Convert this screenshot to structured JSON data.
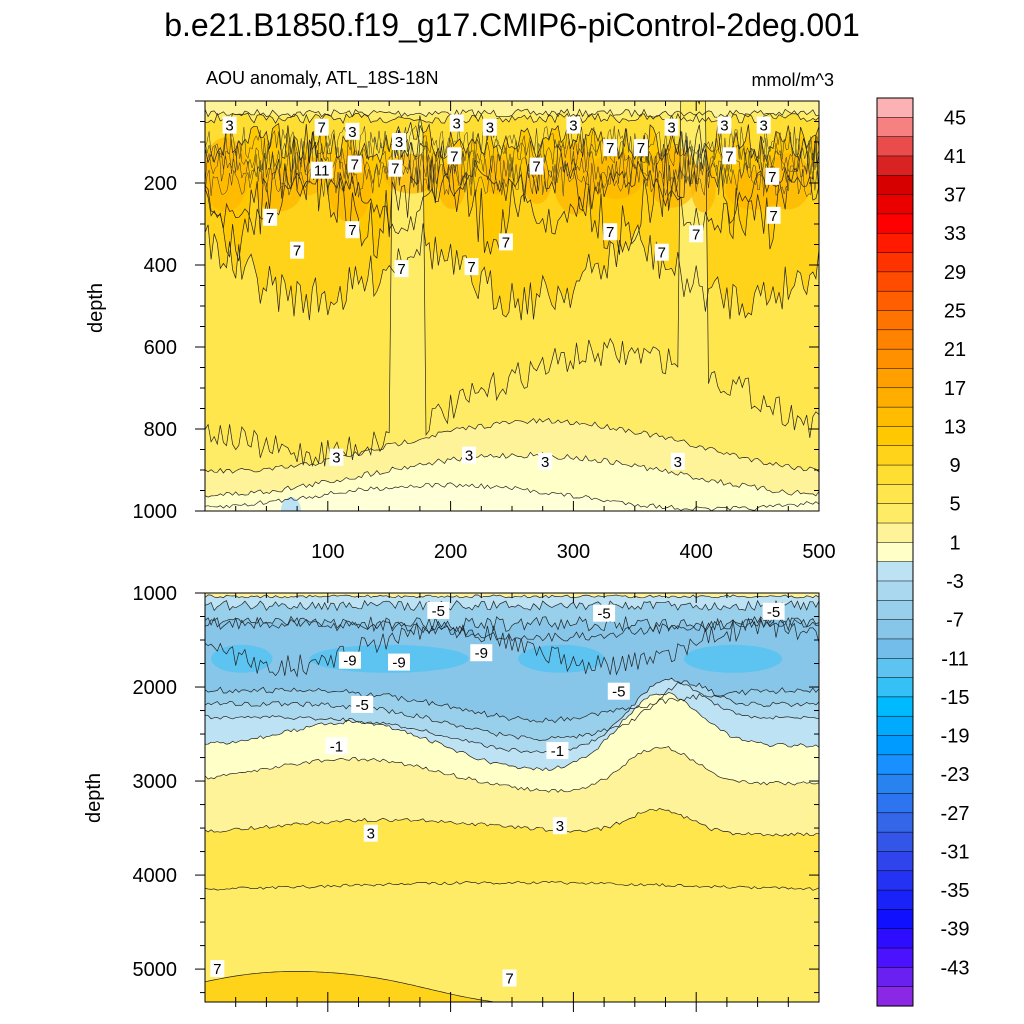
{
  "title": "b.e21.B1850.f19_g17.CMIP6-piControl-2deg.001",
  "chart_data": [
    {
      "type": "heatmap",
      "panel": "upper",
      "subtitle_left": "AOU anomaly, ATL_18S-18N",
      "subtitle_right": "mmol/m^3",
      "ylabel": "depth",
      "xlabel": "",
      "xlim": [
        0,
        500
      ],
      "ylim": [
        0,
        1000
      ],
      "y_reversed": true,
      "xticks": [
        100,
        200,
        300,
        400,
        500
      ],
      "yticks": [
        200,
        400,
        600,
        800,
        1000
      ],
      "contour_labels": [
        {
          "text": "3",
          "x": 20,
          "y": 60
        },
        {
          "text": "7",
          "x": 95,
          "y": 65
        },
        {
          "text": "3",
          "x": 120,
          "y": 75
        },
        {
          "text": "3",
          "x": 158,
          "y": 100
        },
        {
          "text": "3",
          "x": 205,
          "y": 55
        },
        {
          "text": "3",
          "x": 232,
          "y": 65
        },
        {
          "text": "3",
          "x": 300,
          "y": 60
        },
        {
          "text": "3",
          "x": 380,
          "y": 65
        },
        {
          "text": "3",
          "x": 423,
          "y": 60
        },
        {
          "text": "3",
          "x": 455,
          "y": 60
        },
        {
          "text": "11",
          "x": 95,
          "y": 170
        },
        {
          "text": "7",
          "x": 122,
          "y": 155
        },
        {
          "text": "7",
          "x": 155,
          "y": 165
        },
        {
          "text": "7",
          "x": 203,
          "y": 135
        },
        {
          "text": "7",
          "x": 270,
          "y": 160
        },
        {
          "text": "7",
          "x": 330,
          "y": 115
        },
        {
          "text": "7",
          "x": 355,
          "y": 115
        },
        {
          "text": "7",
          "x": 427,
          "y": 135
        },
        {
          "text": "7",
          "x": 462,
          "y": 185
        },
        {
          "text": "7",
          "x": 53,
          "y": 285
        },
        {
          "text": "7",
          "x": 120,
          "y": 315
        },
        {
          "text": "7",
          "x": 245,
          "y": 345
        },
        {
          "text": "7",
          "x": 330,
          "y": 320
        },
        {
          "text": "7",
          "x": 400,
          "y": 325
        },
        {
          "text": "7",
          "x": 463,
          "y": 280
        },
        {
          "text": "7",
          "x": 75,
          "y": 365
        },
        {
          "text": "7",
          "x": 160,
          "y": 410
        },
        {
          "text": "7",
          "x": 217,
          "y": 405
        },
        {
          "text": "7",
          "x": 372,
          "y": 370
        },
        {
          "text": "3",
          "x": 107,
          "y": 870
        },
        {
          "text": "3",
          "x": 215,
          "y": 865
        },
        {
          "text": "3",
          "x": 277,
          "y": 880
        },
        {
          "text": "3",
          "x": 385,
          "y": 880
        }
      ]
    },
    {
      "type": "heatmap",
      "panel": "lower",
      "ylabel": "depth",
      "xlabel": "",
      "xlim": [
        0,
        500
      ],
      "ylim": [
        1000,
        5350
      ],
      "y_reversed": true,
      "yticks": [
        1000,
        2000,
        3000,
        4000,
        5000
      ],
      "contour_labels": [
        {
          "text": "-5",
          "x": 190,
          "y": 1190
        },
        {
          "text": "-5",
          "x": 325,
          "y": 1220
        },
        {
          "text": "-5",
          "x": 463,
          "y": 1200
        },
        {
          "text": "-9",
          "x": 118,
          "y": 1720
        },
        {
          "text": "-9",
          "x": 158,
          "y": 1740
        },
        {
          "text": "-9",
          "x": 225,
          "y": 1640
        },
        {
          "text": "-5",
          "x": 337,
          "y": 2050
        },
        {
          "text": "-5",
          "x": 128,
          "y": 2190
        },
        {
          "text": "-1",
          "x": 107,
          "y": 2630
        },
        {
          "text": "-1",
          "x": 287,
          "y": 2680
        },
        {
          "text": "3",
          "x": 135,
          "y": 3560
        },
        {
          "text": "3",
          "x": 289,
          "y": 3480
        },
        {
          "text": "7",
          "x": 10,
          "y": 5000
        },
        {
          "text": "7",
          "x": 248,
          "y": 5100
        }
      ]
    }
  ],
  "colorbar": {
    "labels": [
      "45",
      "41",
      "37",
      "33",
      "29",
      "25",
      "21",
      "17",
      "13",
      "9",
      "5",
      "1",
      "-3",
      "-7",
      "-11",
      "-15",
      "-19",
      "-23",
      "-27",
      "-31",
      "-35",
      "-39",
      "-43"
    ],
    "colors_top_to_bottom": [
      "#fcb2b2",
      "#f78080",
      "#ea4c4c",
      "#d92222",
      "#d60000",
      "#eb0000",
      "#ff0000",
      "#ff1a00",
      "#ff3300",
      "#ff4c00",
      "#ff5f00",
      "#ff7300",
      "#ff8200",
      "#ff9000",
      "#ffa000",
      "#ffae00",
      "#ffbc00",
      "#ffc800",
      "#ffd319",
      "#ffde33",
      "#ffe64c",
      "#ffec66",
      "#fff399",
      "#ffffc8",
      "#bde2f3",
      "#aad8ee",
      "#98cfeb",
      "#87c6e9",
      "#72bde9",
      "#5dc3f0",
      "#35c0f6",
      "#00baff",
      "#00aaff",
      "#009bff",
      "#1990ff",
      "#2882f0",
      "#2c74f0",
      "#3366e8",
      "#3356e8",
      "#2f44ec",
      "#2432f4",
      "#1a22fa",
      "#1010ff",
      "#2d0cff",
      "#4a12ff",
      "#6a20f0",
      "#8a28e6"
    ]
  }
}
